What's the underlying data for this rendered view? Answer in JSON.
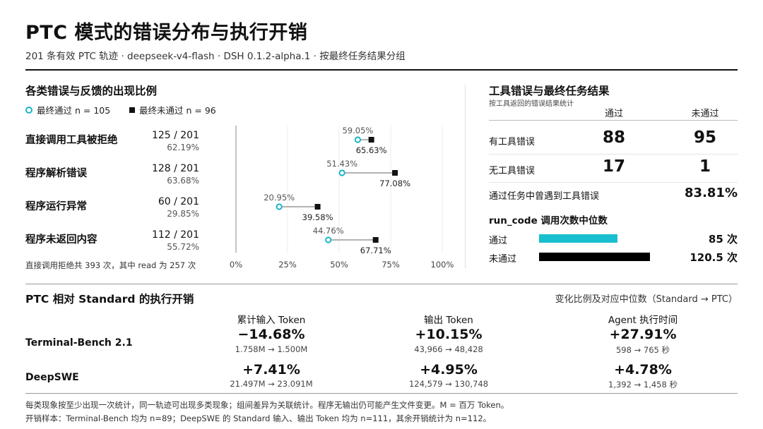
{
  "header": {
    "title": "PTC 模式的错误分布与执行开销",
    "subtitle": "201 条有效 PTC 轨迹 · deepseek-v4-flash · DSH 0.1.2-alpha.1 · 按最终任务结果分组"
  },
  "left_panel": {
    "title": "各类错误与反馈的出现比例",
    "legend_pass": "最终通过 n = 105",
    "legend_fail": "最终未通过 n = 96",
    "footnote": "直接调用拒绝共 393 次，其中 read 为 257 次",
    "categories": [
      {
        "label": "直接调用工具被拒绝",
        "fraction": "125 / 201",
        "pct": "62.19%"
      },
      {
        "label": "程序解析错误",
        "fraction": "128 / 201",
        "pct": "63.68%"
      },
      {
        "label": "程序运行异常",
        "fraction": "60 / 201",
        "pct": "29.85%"
      },
      {
        "label": "程序未返回内容",
        "fraction": "112 / 201",
        "pct": "55.72%"
      }
    ]
  },
  "chart_data": {
    "type": "scatter",
    "categories": [
      "直接调用工具被拒绝",
      "程序解析错误",
      "程序运行异常",
      "程序未返回内容"
    ],
    "series": [
      {
        "name": "最终通过 n = 105",
        "values": [
          59.05,
          51.43,
          20.95,
          44.76
        ],
        "labels": [
          "59.05%",
          "51.43%",
          "20.95%",
          "44.76%"
        ]
      },
      {
        "name": "最终未通过 n = 96",
        "values": [
          65.63,
          77.08,
          39.58,
          67.71
        ],
        "labels": [
          "65.63%",
          "77.08%",
          "39.58%",
          "67.71%"
        ]
      }
    ],
    "xlim": [
      0,
      100
    ],
    "xticks": [
      0,
      25,
      50,
      75,
      100
    ],
    "xtick_labels": [
      "0%",
      "25%",
      "50%",
      "75%",
      "100%"
    ],
    "grid": true,
    "colors": {
      "pass": "#19b5c9",
      "fail": "#111111",
      "connector": "#999999"
    }
  },
  "right_panel": {
    "title": "工具错误与最终任务结果",
    "subtitle": "按工具返回的错误结果统计",
    "col_pass": "通过",
    "col_fail": "未通过",
    "rows": [
      {
        "label": "有工具错误",
        "pass": "88",
        "fail": "95"
      },
      {
        "label": "无工具错误",
        "pass": "17",
        "fail": "1"
      }
    ],
    "rate_label": "通过任务中曾遇到工具错误",
    "rate_value": "83.81%",
    "median_title": "run_code 调用次数中位数",
    "median_rows": [
      {
        "label": "通过",
        "value": 85,
        "value_text": "85 次",
        "color": "#19bfcf"
      },
      {
        "label": "未通过",
        "value": 120.5,
        "value_text": "120.5 次",
        "color": "#000000"
      }
    ]
  },
  "bottom": {
    "title": "PTC 相对 Standard 的执行开销",
    "note": "变化比例及对应中位数（Standard → PTC）",
    "columns": [
      "累计输入 Token",
      "输出 Token",
      "Agent 执行时间"
    ],
    "rows": [
      {
        "name": "Terminal-Bench 2.1",
        "cells": [
          {
            "change": "−14.68%",
            "detail": "1.758M → 1.500M"
          },
          {
            "change": "+10.15%",
            "detail": "43,966 → 48,428"
          },
          {
            "change": "+27.91%",
            "detail": "598 → 765 秒"
          }
        ]
      },
      {
        "name": "DeepSWE",
        "cells": [
          {
            "change": "+7.41%",
            "detail": "21.497M → 23.091M"
          },
          {
            "change": "+4.95%",
            "detail": "124,579 → 130,748"
          },
          {
            "change": "+4.78%",
            "detail": "1,392 → 1,458 秒"
          }
        ]
      }
    ],
    "footnote1": "每类现象按至少出现一次统计，同一轨迹可出现多类现象；组间差异为关联统计。程序无输出仍可能产生文件变更。M = 百万 Token。",
    "footnote2": "开销样本：Terminal-Bench 均为 n=89；DeepSWE 的 Standard 输入、输出 Token 均为 n=111，其余开销统计为 n=112。"
  }
}
